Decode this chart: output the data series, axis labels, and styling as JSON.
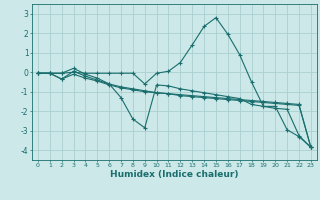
{
  "xlabel": "Humidex (Indice chaleur)",
  "bg_color": "#cce8e8",
  "grid_color": "#aacfcf",
  "line_color": "#1a6e6e",
  "x_ticks": [
    0,
    1,
    2,
    3,
    4,
    5,
    6,
    7,
    8,
    9,
    10,
    11,
    12,
    13,
    14,
    15,
    16,
    17,
    18,
    19,
    20,
    21,
    22,
    23
  ],
  "ylim": [
    -4.5,
    3.5
  ],
  "xlim": [
    -0.5,
    23.5
  ],
  "yticks": [
    -4,
    -3,
    -2,
    -1,
    0,
    1,
    2,
    3
  ],
  "series": [
    {
      "x": [
        0,
        1,
        2,
        3,
        4,
        5,
        6,
        7,
        8,
        9,
        10,
        11,
        12,
        13,
        14,
        15,
        16,
        17,
        18,
        19,
        20,
        21,
        22,
        23
      ],
      "y": [
        -0.05,
        -0.05,
        -0.05,
        0.2,
        -0.1,
        -0.3,
        -0.6,
        -1.3,
        -2.4,
        -2.85,
        -0.65,
        -0.7,
        -0.85,
        -0.95,
        -1.05,
        -1.15,
        -1.25,
        -1.35,
        -1.65,
        -1.75,
        -1.85,
        -1.9,
        -3.25,
        -3.85
      ]
    },
    {
      "x": [
        0,
        1,
        2,
        3,
        4,
        5,
        6,
        7,
        8,
        9,
        10,
        11,
        12,
        13,
        14,
        15,
        16,
        17,
        18,
        19,
        20,
        21,
        22,
        23
      ],
      "y": [
        -0.05,
        -0.05,
        -0.35,
        0.05,
        -0.2,
        -0.4,
        -0.6,
        -0.75,
        -0.85,
        -0.95,
        -1.05,
        -1.1,
        -1.2,
        -1.25,
        -1.3,
        -1.35,
        -1.4,
        -1.45,
        -1.5,
        -1.55,
        -1.6,
        -1.65,
        -1.7,
        -3.85
      ]
    },
    {
      "x": [
        0,
        1,
        2,
        3,
        4,
        5,
        6,
        7,
        8,
        9,
        10,
        11,
        12,
        13,
        14,
        15,
        16,
        17,
        18,
        19,
        20,
        21,
        22,
        23
      ],
      "y": [
        -0.05,
        -0.05,
        -0.35,
        -0.1,
        -0.3,
        -0.45,
        -0.65,
        -0.8,
        -0.9,
        -1.0,
        -1.05,
        -1.1,
        -1.15,
        -1.2,
        -1.25,
        -1.3,
        -1.35,
        -1.4,
        -1.45,
        -1.5,
        -1.55,
        -1.6,
        -1.65,
        -3.85
      ]
    },
    {
      "x": [
        0,
        1,
        2,
        3,
        4,
        5,
        6,
        7,
        8,
        9,
        10,
        11,
        12,
        13,
        14,
        15,
        16,
        17,
        18,
        19,
        20,
        21,
        22,
        23
      ],
      "y": [
        -0.05,
        -0.05,
        -0.05,
        0.0,
        -0.05,
        -0.05,
        -0.05,
        -0.05,
        -0.05,
        -0.6,
        -0.05,
        0.05,
        0.5,
        1.4,
        2.35,
        2.8,
        1.95,
        0.9,
        -0.5,
        -1.75,
        -1.75,
        -2.95,
        -3.3,
        -3.85
      ]
    }
  ]
}
